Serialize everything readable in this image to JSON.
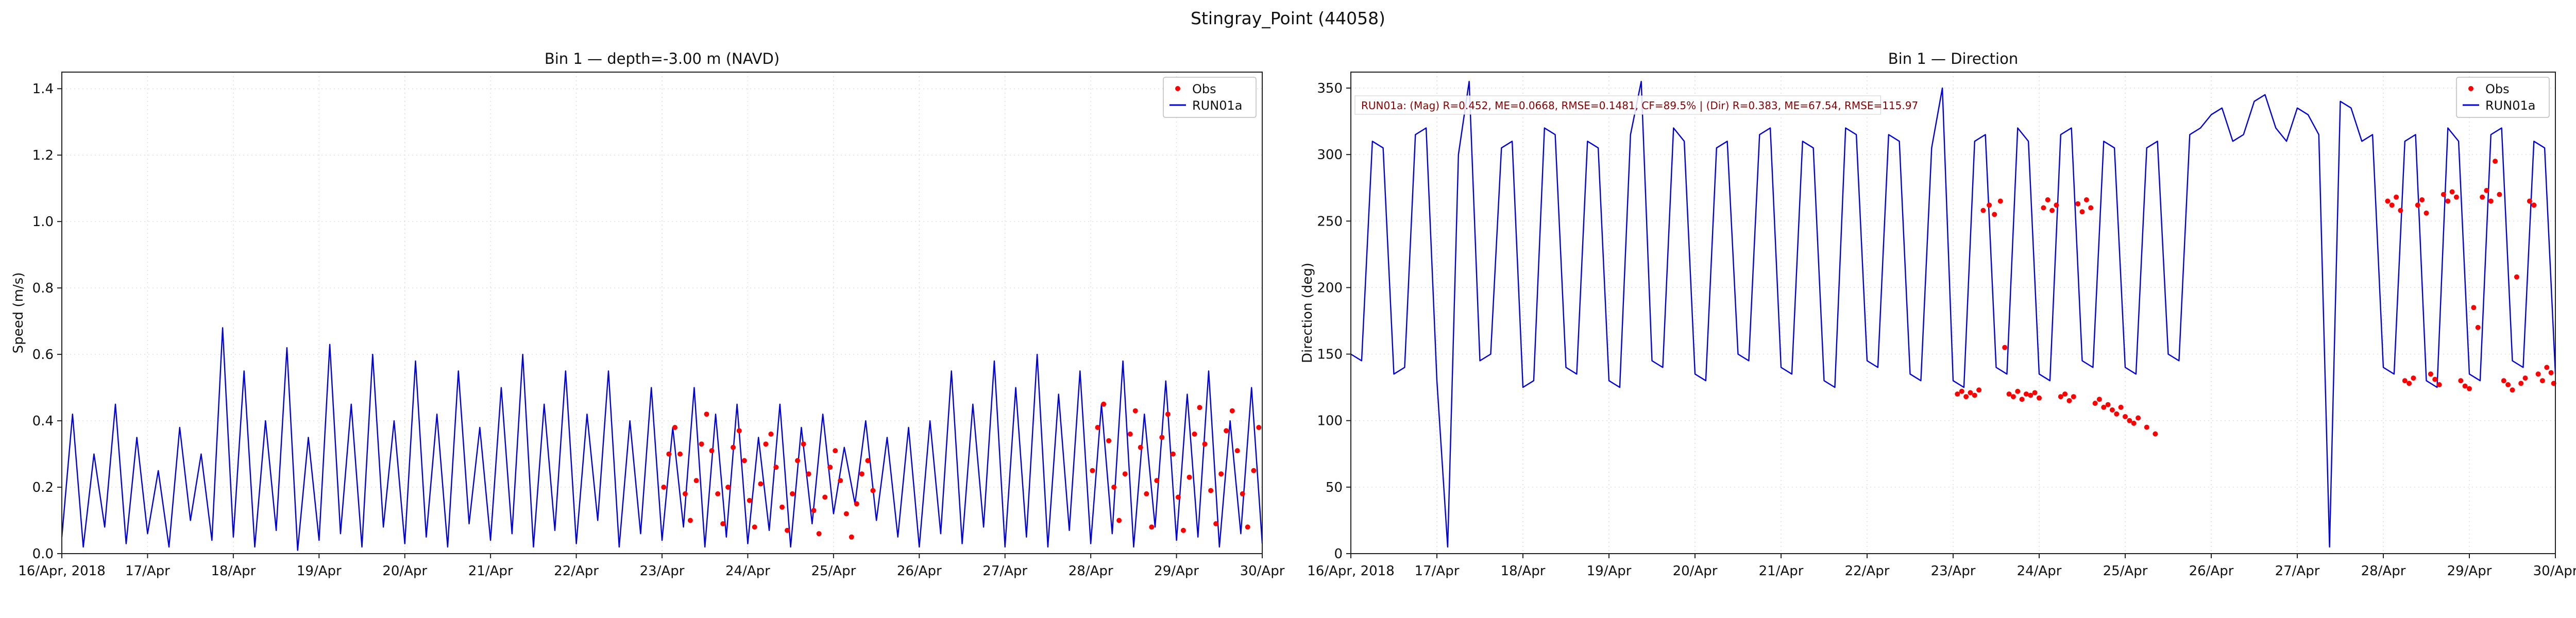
{
  "suptitle": "Stingray_Point (44058)",
  "colors": {
    "model": "#0000dd",
    "obs": "#ff0000",
    "annotation": "#8b0000",
    "grid": "#dcdcdc",
    "spine": "#222222",
    "text": "#111111"
  },
  "chart_data": [
    {
      "type": "line",
      "title": "Bin 1 — depth=-3.00 m (NAVD)",
      "ylabel": "Speed (m/s)",
      "xlim": [
        0,
        14
      ],
      "ylim": [
        0,
        1.45
      ],
      "x_ticks": [
        0,
        1,
        2,
        3,
        4,
        5,
        6,
        7,
        8,
        9,
        10,
        11,
        12,
        13,
        14
      ],
      "x_tick_labels": [
        "16/Apr, 2018",
        "17/Apr",
        "18/Apr",
        "19/Apr",
        "20/Apr",
        "21/Apr",
        "22/Apr",
        "23/Apr",
        "24/Apr",
        "25/Apr",
        "26/Apr",
        "27/Apr",
        "28/Apr",
        "29/Apr",
        "30/Apr"
      ],
      "y_ticks": [
        0.0,
        0.2,
        0.4,
        0.6,
        0.8,
        1.0,
        1.2,
        1.4
      ],
      "y_tick_labels": [
        "0.0",
        "0.2",
        "0.4",
        "0.6",
        "0.8",
        "1.0",
        "1.2",
        "1.4"
      ],
      "legend": [
        "Obs",
        "RUN01a"
      ],
      "series": [
        {
          "name": "RUN01a",
          "kind": "line",
          "color": "#0000dd",
          "x_start": 0,
          "x_step": 0.125,
          "values": [
            0.05,
            0.42,
            0.02,
            0.3,
            0.08,
            0.45,
            0.03,
            0.35,
            0.06,
            0.25,
            0.02,
            0.38,
            0.1,
            0.3,
            0.04,
            0.68,
            0.05,
            0.55,
            0.02,
            0.4,
            0.07,
            0.62,
            0.01,
            0.35,
            0.04,
            0.63,
            0.06,
            0.45,
            0.02,
            0.6,
            0.08,
            0.4,
            0.03,
            0.58,
            0.05,
            0.42,
            0.02,
            0.55,
            0.09,
            0.38,
            0.04,
            0.5,
            0.06,
            0.6,
            0.02,
            0.45,
            0.07,
            0.55,
            0.03,
            0.42,
            0.1,
            0.55,
            0.02,
            0.4,
            0.06,
            0.5,
            0.04,
            0.38,
            0.08,
            0.5,
            0.02,
            0.42,
            0.05,
            0.45,
            0.03,
            0.35,
            0.07,
            0.45,
            0.02,
            0.38,
            0.09,
            0.42,
            0.12,
            0.32,
            0.15,
            0.4,
            0.1,
            0.35,
            0.05,
            0.38,
            0.02,
            0.4,
            0.06,
            0.55,
            0.03,
            0.45,
            0.08,
            0.58,
            0.02,
            0.5,
            0.05,
            0.6,
            0.02,
            0.48,
            0.07,
            0.55,
            0.03,
            0.45,
            0.06,
            0.58,
            0.02,
            0.42,
            0.08,
            0.52,
            0.04,
            0.48,
            0.05,
            0.55,
            0.02,
            0.4,
            0.06,
            0.5,
            0.03
          ]
        },
        {
          "name": "Obs",
          "kind": "scatter",
          "color": "#ff0000",
          "points": [
            [
              7.02,
              0.2
            ],
            [
              7.08,
              0.3
            ],
            [
              7.15,
              0.38
            ],
            [
              7.21,
              0.3
            ],
            [
              7.27,
              0.18
            ],
            [
              7.33,
              0.1
            ],
            [
              7.4,
              0.22
            ],
            [
              7.46,
              0.33
            ],
            [
              7.52,
              0.42
            ],
            [
              7.58,
              0.31
            ],
            [
              7.65,
              0.18
            ],
            [
              7.71,
              0.09
            ],
            [
              7.77,
              0.2
            ],
            [
              7.83,
              0.32
            ],
            [
              7.9,
              0.37
            ],
            [
              7.96,
              0.28
            ],
            [
              8.02,
              0.16
            ],
            [
              8.08,
              0.08
            ],
            [
              8.15,
              0.21
            ],
            [
              8.21,
              0.33
            ],
            [
              8.27,
              0.36
            ],
            [
              8.33,
              0.26
            ],
            [
              8.4,
              0.14
            ],
            [
              8.46,
              0.07
            ],
            [
              8.52,
              0.18
            ],
            [
              8.58,
              0.28
            ],
            [
              8.65,
              0.33
            ],
            [
              8.71,
              0.24
            ],
            [
              8.77,
              0.13
            ],
            [
              8.83,
              0.06
            ],
            [
              8.9,
              0.17
            ],
            [
              8.96,
              0.26
            ],
            [
              9.02,
              0.31
            ],
            [
              9.08,
              0.22
            ],
            [
              9.15,
              0.12
            ],
            [
              9.21,
              0.05
            ],
            [
              9.27,
              0.15
            ],
            [
              9.33,
              0.24
            ],
            [
              9.4,
              0.28
            ],
            [
              9.46,
              0.19
            ],
            [
              12.02,
              0.25
            ],
            [
              12.08,
              0.38
            ],
            [
              12.15,
              0.45
            ],
            [
              12.21,
              0.34
            ],
            [
              12.27,
              0.2
            ],
            [
              12.33,
              0.1
            ],
            [
              12.4,
              0.24
            ],
            [
              12.46,
              0.36
            ],
            [
              12.52,
              0.43
            ],
            [
              12.58,
              0.32
            ],
            [
              12.65,
              0.18
            ],
            [
              12.71,
              0.08
            ],
            [
              12.77,
              0.22
            ],
            [
              12.83,
              0.35
            ],
            [
              12.9,
              0.42
            ],
            [
              12.96,
              0.3
            ],
            [
              13.02,
              0.17
            ],
            [
              13.08,
              0.07
            ],
            [
              13.15,
              0.23
            ],
            [
              13.21,
              0.36
            ],
            [
              13.27,
              0.44
            ],
            [
              13.33,
              0.33
            ],
            [
              13.4,
              0.19
            ],
            [
              13.46,
              0.09
            ],
            [
              13.52,
              0.24
            ],
            [
              13.58,
              0.37
            ],
            [
              13.65,
              0.43
            ],
            [
              13.71,
              0.31
            ],
            [
              13.77,
              0.18
            ],
            [
              13.83,
              0.08
            ],
            [
              13.9,
              0.25
            ],
            [
              13.96,
              0.38
            ]
          ]
        }
      ]
    },
    {
      "type": "line",
      "title": "Bin 1 — Direction",
      "ylabel": "Direction (deg)",
      "annotation": "RUN01a: (Mag) R=0.452, ME=0.0668, RMSE=0.1481, CF=89.5% | (Dir) R=0.383, ME=67.54, RMSE=115.97",
      "xlim": [
        0,
        14
      ],
      "ylim": [
        0,
        362
      ],
      "x_ticks": [
        0,
        1,
        2,
        3,
        4,
        5,
        6,
        7,
        8,
        9,
        10,
        11,
        12,
        13,
        14
      ],
      "x_tick_labels": [
        "16/Apr, 2018",
        "17/Apr",
        "18/Apr",
        "19/Apr",
        "20/Apr",
        "21/Apr",
        "22/Apr",
        "23/Apr",
        "24/Apr",
        "25/Apr",
        "26/Apr",
        "27/Apr",
        "28/Apr",
        "29/Apr",
        "30/Apr"
      ],
      "y_ticks": [
        0,
        50,
        100,
        150,
        200,
        250,
        300,
        350
      ],
      "y_tick_labels": [
        "0",
        "50",
        "100",
        "150",
        "200",
        "250",
        "300",
        "350"
      ],
      "legend": [
        "Obs",
        "RUN01a"
      ],
      "series": [
        {
          "name": "RUN01a",
          "kind": "line",
          "color": "#0000dd",
          "x_start": 0,
          "x_step": 0.125,
          "values": [
            150,
            145,
            310,
            305,
            135,
            140,
            315,
            320,
            130,
            5,
            300,
            355,
            145,
            150,
            305,
            310,
            125,
            130,
            320,
            315,
            140,
            135,
            310,
            305,
            130,
            125,
            315,
            355,
            145,
            140,
            320,
            310,
            135,
            130,
            305,
            310,
            150,
            145,
            315,
            320,
            140,
            135,
            310,
            305,
            130,
            125,
            320,
            315,
            145,
            140,
            315,
            310,
            135,
            130,
            305,
            350,
            130,
            125,
            310,
            315,
            140,
            135,
            320,
            310,
            135,
            130,
            315,
            320,
            145,
            140,
            310,
            305,
            140,
            135,
            305,
            310,
            150,
            145,
            315,
            320,
            330,
            335,
            310,
            315,
            340,
            345,
            320,
            310,
            335,
            330,
            315,
            5,
            340,
            335,
            310,
            315,
            140,
            135,
            310,
            315,
            130,
            125,
            320,
            310,
            135,
            130,
            315,
            320,
            145,
            140,
            310,
            305,
            135
          ]
        },
        {
          "name": "Obs",
          "kind": "scatter",
          "color": "#ff0000",
          "points": [
            [
              7.05,
              120
            ],
            [
              7.1,
              122
            ],
            [
              7.15,
              118
            ],
            [
              7.2,
              121
            ],
            [
              7.25,
              119
            ],
            [
              7.3,
              123
            ],
            [
              7.35,
              258
            ],
            [
              7.42,
              262
            ],
            [
              7.48,
              255
            ],
            [
              7.55,
              265
            ],
            [
              7.6,
              155
            ],
            [
              7.65,
              120
            ],
            [
              7.7,
              118
            ],
            [
              7.75,
              122
            ],
            [
              7.8,
              116
            ],
            [
              7.85,
              120
            ],
            [
              7.9,
              119
            ],
            [
              7.95,
              121
            ],
            [
              8.0,
              117
            ],
            [
              8.05,
              260
            ],
            [
              8.1,
              266
            ],
            [
              8.15,
              258
            ],
            [
              8.2,
              262
            ],
            [
              8.25,
              118
            ],
            [
              8.3,
              120
            ],
            [
              8.35,
              115
            ],
            [
              8.4,
              118
            ],
            [
              8.45,
              263
            ],
            [
              8.5,
              257
            ],
            [
              8.55,
              266
            ],
            [
              8.6,
              260
            ],
            [
              8.65,
              113
            ],
            [
              8.7,
              116
            ],
            [
              8.75,
              110
            ],
            [
              8.8,
              112
            ],
            [
              8.85,
              108
            ],
            [
              8.9,
              105
            ],
            [
              8.95,
              110
            ],
            [
              9.0,
              103
            ],
            [
              9.05,
              100
            ],
            [
              9.1,
              98
            ],
            [
              9.15,
              102
            ],
            [
              9.25,
              95
            ],
            [
              9.35,
              90
            ],
            [
              12.05,
              265
            ],
            [
              12.1,
              262
            ],
            [
              12.15,
              268
            ],
            [
              12.2,
              258
            ],
            [
              12.25,
              130
            ],
            [
              12.3,
              128
            ],
            [
              12.35,
              132
            ],
            [
              12.4,
              262
            ],
            [
              12.45,
              266
            ],
            [
              12.5,
              256
            ],
            [
              12.55,
              135
            ],
            [
              12.6,
              131
            ],
            [
              12.65,
              127
            ],
            [
              12.7,
              270
            ],
            [
              12.75,
              265
            ],
            [
              12.8,
              272
            ],
            [
              12.85,
              268
            ],
            [
              12.9,
              130
            ],
            [
              12.95,
              126
            ],
            [
              13.0,
              124
            ],
            [
              13.05,
              185
            ],
            [
              13.1,
              170
            ],
            [
              13.15,
              268
            ],
            [
              13.2,
              273
            ],
            [
              13.25,
              265
            ],
            [
              13.3,
              295
            ],
            [
              13.35,
              270
            ],
            [
              13.4,
              130
            ],
            [
              13.45,
              127
            ],
            [
              13.5,
              123
            ],
            [
              13.55,
              208
            ],
            [
              13.6,
              128
            ],
            [
              13.65,
              132
            ],
            [
              13.7,
              265
            ],
            [
              13.75,
              262
            ],
            [
              13.8,
              135
            ],
            [
              13.85,
              130
            ],
            [
              13.9,
              140
            ],
            [
              13.95,
              136
            ],
            [
              13.98,
              128
            ]
          ]
        }
      ]
    }
  ]
}
